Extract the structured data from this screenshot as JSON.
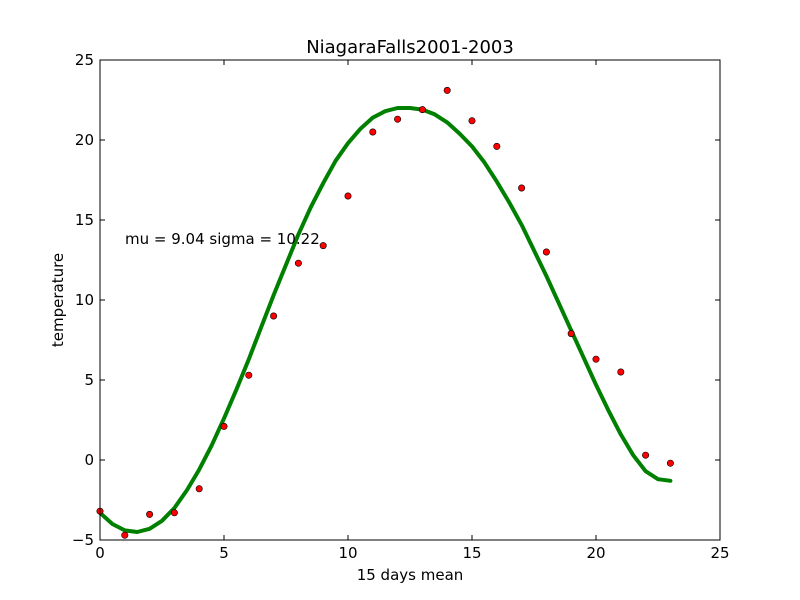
{
  "chart_data": {
    "type": "scatter",
    "title": "NiagaraFalls2001-2003",
    "xlabel": "15 days mean",
    "ylabel": "temperature",
    "xlim": [
      0,
      25
    ],
    "ylim": [
      -5,
      25
    ],
    "xticks": [
      0,
      5,
      10,
      15,
      20,
      25
    ],
    "yticks": [
      -5,
      0,
      5,
      10,
      15,
      20,
      25
    ],
    "grid": false,
    "annotation": "mu = 9.04 sigma = 10.22",
    "series": [
      {
        "kind": "points",
        "color": "#ff0000",
        "x": [
          0,
          1,
          2,
          3,
          4,
          5,
          6,
          7,
          8,
          9,
          10,
          11,
          12,
          13,
          14,
          15,
          16,
          17,
          18,
          19,
          20,
          21,
          22,
          23
        ],
        "y": [
          -3.2,
          -4.7,
          -3.4,
          -3.3,
          -1.8,
          2.1,
          5.3,
          9.0,
          12.3,
          13.4,
          16.5,
          20.5,
          21.3,
          21.9,
          23.1,
          21.2,
          19.6,
          17.0,
          13.0,
          7.9,
          6.3,
          5.5,
          0.3,
          -0.2
        ]
      },
      {
        "kind": "line",
        "color": "#008000",
        "x": [
          0,
          0.5,
          1,
          1.5,
          2,
          2.5,
          3,
          3.5,
          4,
          4.5,
          5,
          5.5,
          6,
          6.5,
          7,
          7.5,
          8,
          8.5,
          9,
          9.5,
          10,
          10.5,
          11,
          11.5,
          12,
          12.5,
          13,
          13.5,
          14,
          14.5,
          15,
          15.5,
          16,
          16.5,
          17,
          17.5,
          18,
          18.5,
          19,
          19.5,
          20,
          20.5,
          21,
          21.5,
          22,
          22.5,
          23
        ],
        "y": [
          -3.3,
          -4.0,
          -4.4,
          -4.5,
          -4.3,
          -3.8,
          -3.0,
          -1.9,
          -0.6,
          0.9,
          2.6,
          4.4,
          6.3,
          8.3,
          10.3,
          12.2,
          14.1,
          15.8,
          17.3,
          18.7,
          19.8,
          20.7,
          21.4,
          21.8,
          22.0,
          22.0,
          21.9,
          21.6,
          21.1,
          20.4,
          19.6,
          18.6,
          17.4,
          16.1,
          14.7,
          13.1,
          11.5,
          9.8,
          8.1,
          6.4,
          4.7,
          3.1,
          1.6,
          0.3,
          -0.7,
          -1.2,
          -1.3
        ]
      }
    ]
  }
}
